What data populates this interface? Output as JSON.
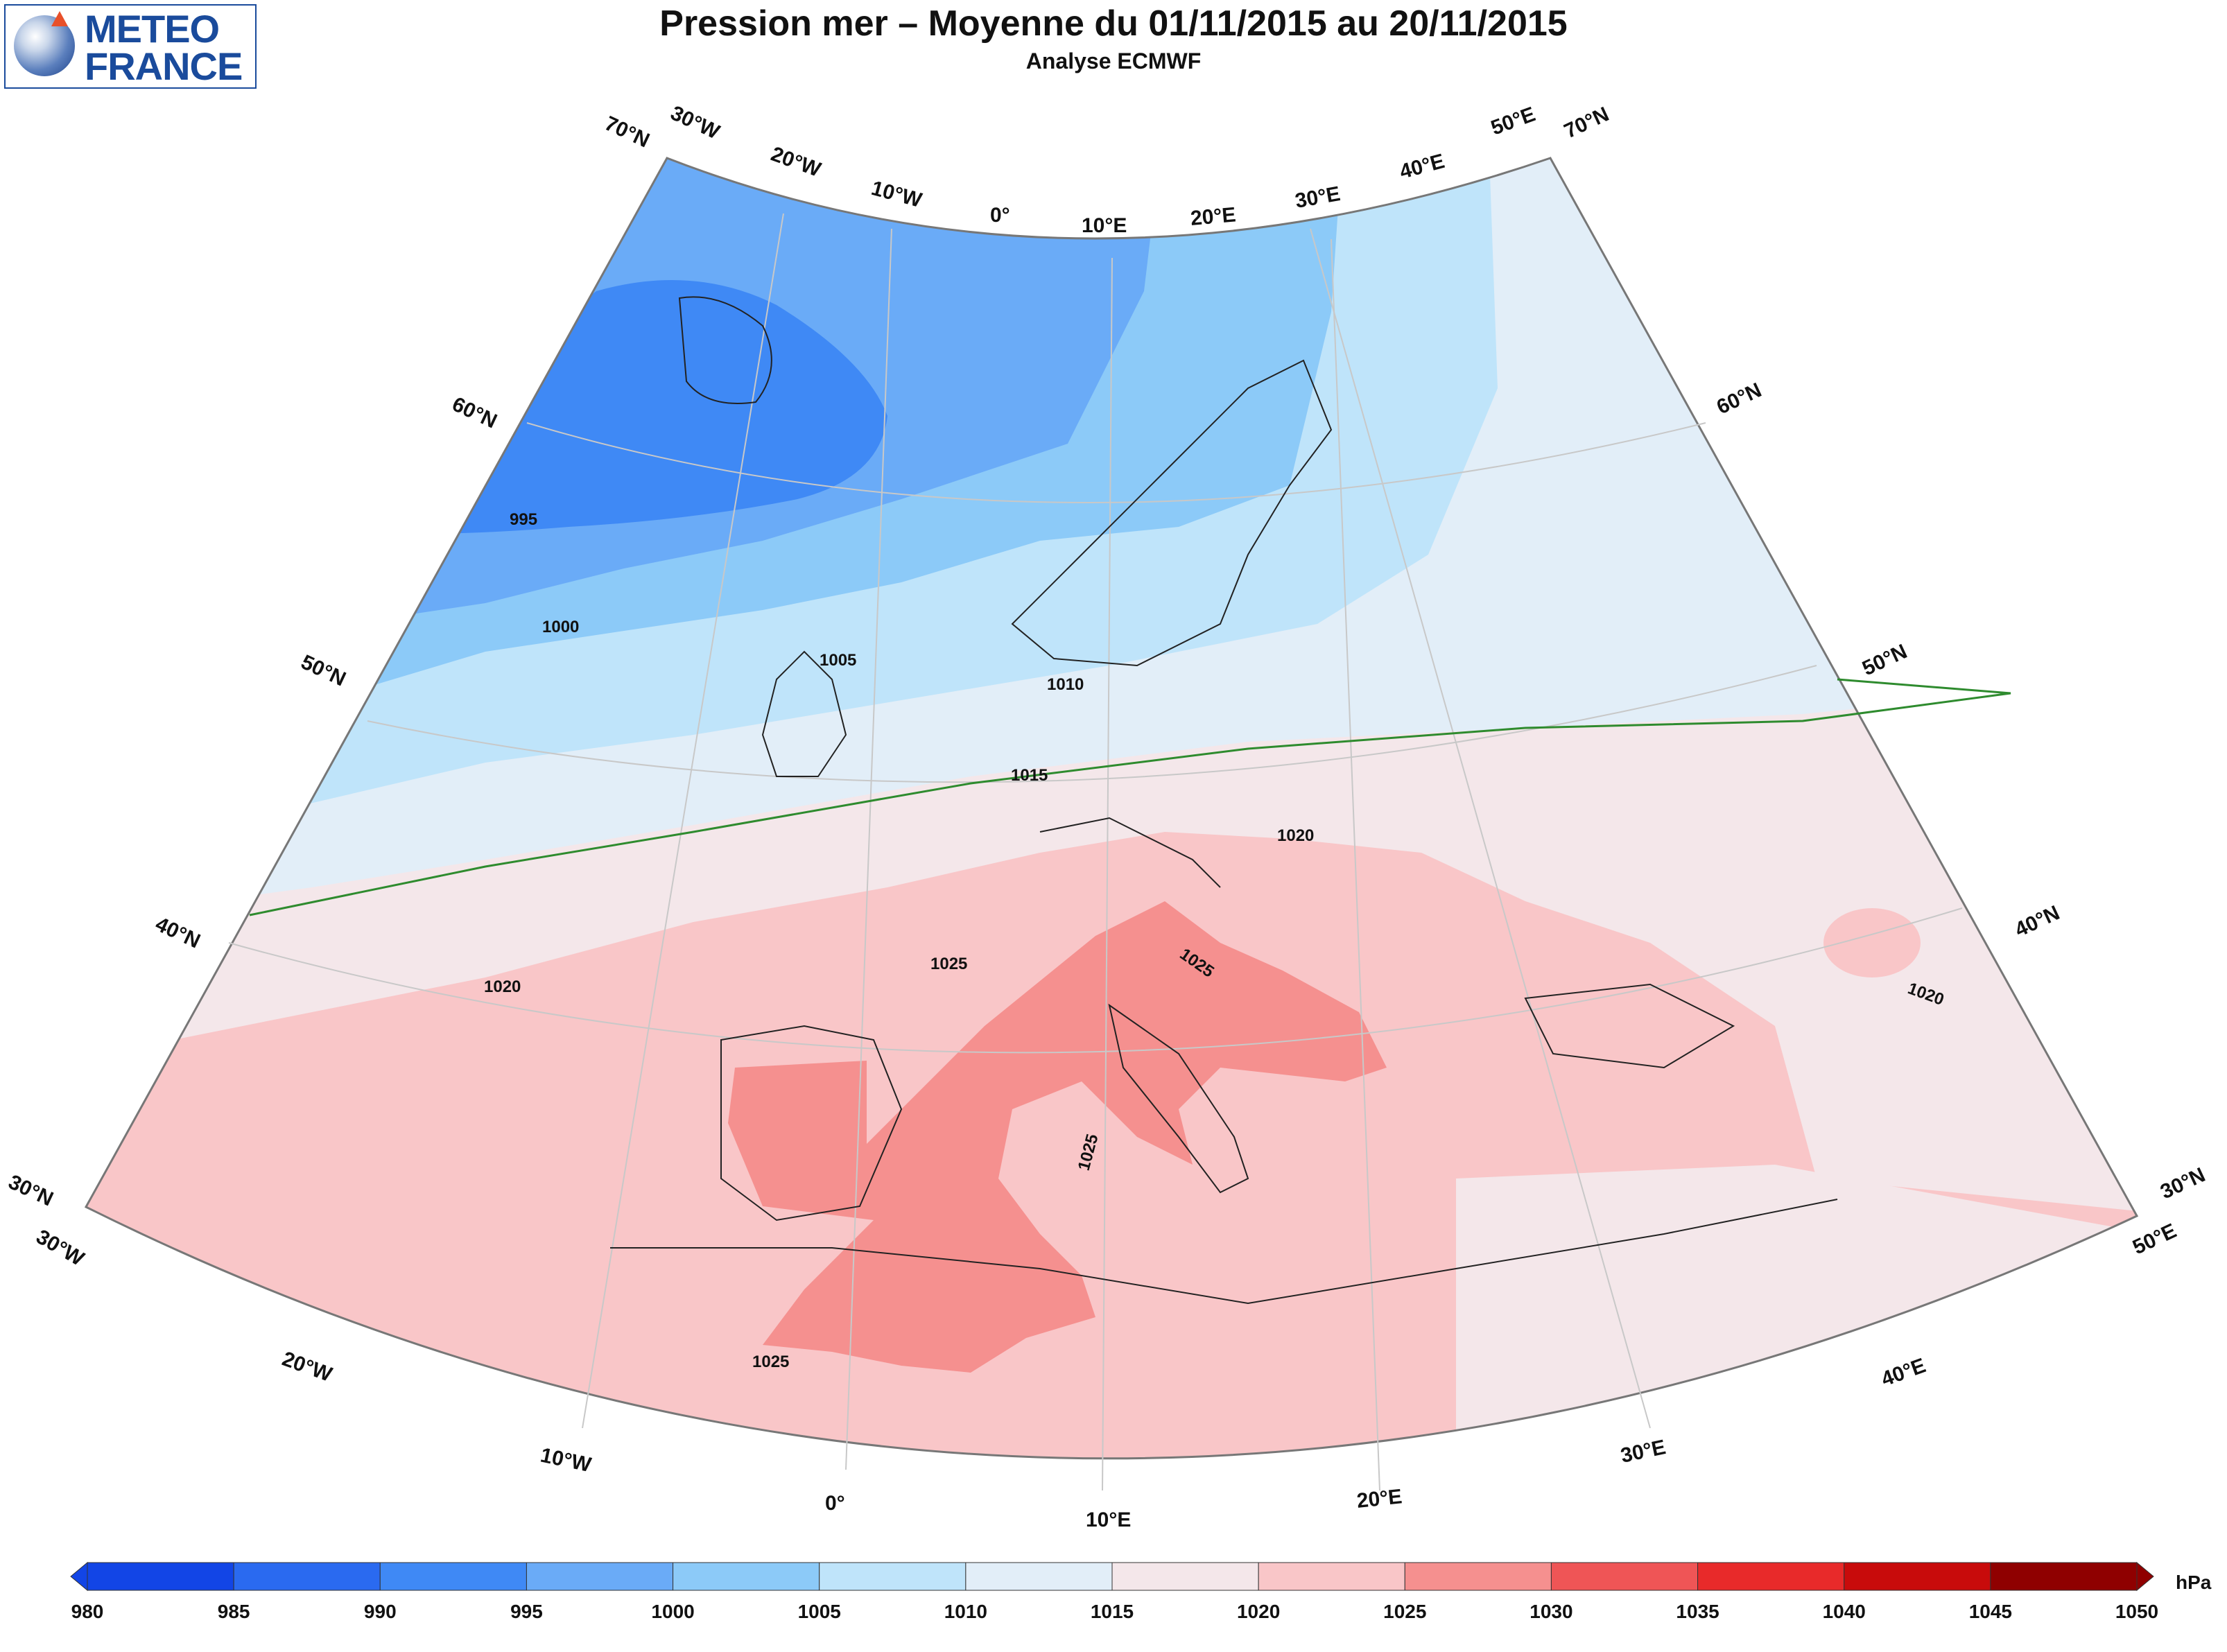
{
  "header": {
    "logo_line1": "METEO",
    "logo_line2": "FRANCE",
    "title": "Pression mer – Moyenne du 01/11/2015 au 20/11/2015",
    "subtitle": "Analyse ECMWF"
  },
  "map": {
    "projection": "conic",
    "extent": {
      "lon": [
        -30,
        50
      ],
      "lat": [
        30,
        70
      ]
    },
    "graticule": {
      "lat_labels": [
        "30°N",
        "40°N",
        "50°N",
        "60°N",
        "70°N"
      ],
      "lon_labels_top": [
        "30°W",
        "20°W",
        "10°W",
        "0°",
        "10°E",
        "20°E",
        "30°E",
        "40°E",
        "50°E"
      ],
      "lon_labels_bottom": [
        "30°W",
        "20°W",
        "10°W",
        "0°",
        "10°E",
        "20°E",
        "30°E",
        "40°E",
        "50°E"
      ]
    },
    "contour_labels": [
      "995",
      "1000",
      "1005",
      "1010",
      "1015",
      "1020",
      "1020",
      "1020",
      "1025",
      "1025",
      "1025",
      "1025"
    ],
    "highlighted_isobar": {
      "value": 1015,
      "color": "#2e8b2e"
    }
  },
  "colorbar": {
    "unit": "hPa",
    "ticks": [
      "980",
      "985",
      "990",
      "995",
      "1000",
      "1005",
      "1010",
      "1015",
      "1020",
      "1025",
      "1030",
      "1035",
      "1040",
      "1045",
      "1050"
    ],
    "colors": [
      "#1245e6",
      "#2a6af0",
      "#3f89f5",
      "#6aabf7",
      "#8ccaf8",
      "#bfe4fa",
      "#e2eef8",
      "#f4e7ea",
      "#f9c6c8",
      "#f5908f",
      "#ef5556",
      "#e82a2a",
      "#c80b0b",
      "#8f0000"
    ]
  }
}
